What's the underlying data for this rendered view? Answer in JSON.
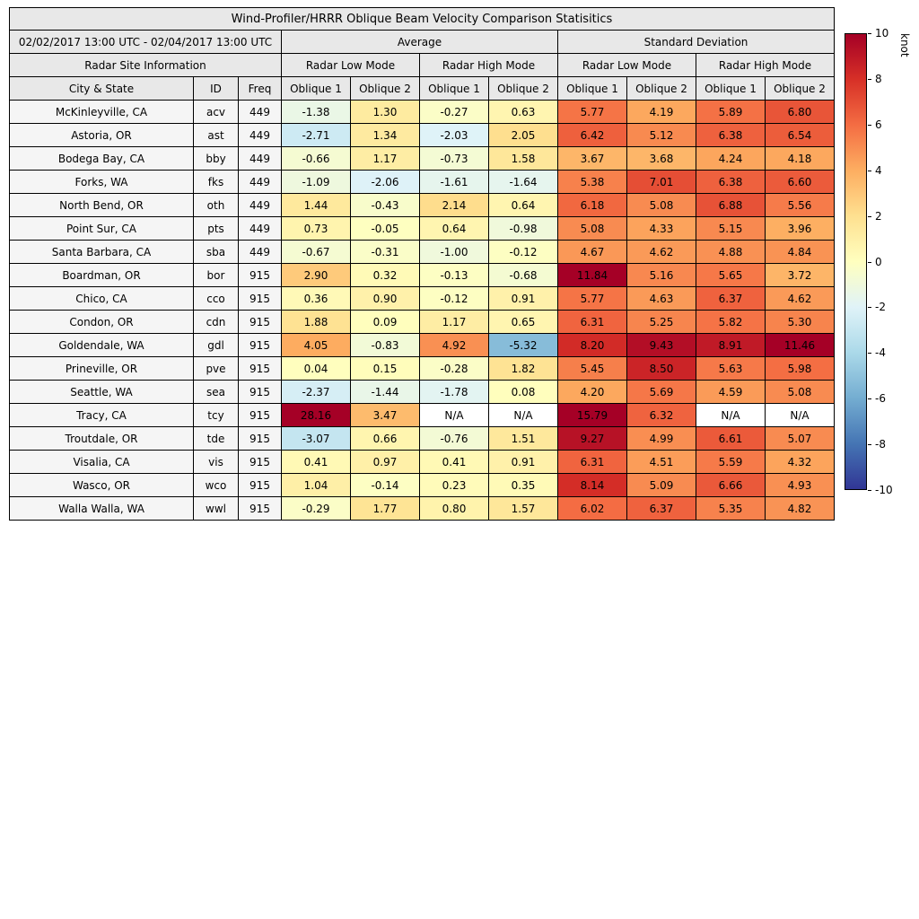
{
  "title": "Wind-Profiler/HRRR Oblique Beam Velocity Comparison Statisitics",
  "header": {
    "date_range": "02/02/2017 13:00 UTC - 02/04/2017 13:00 UTC",
    "group_average": "Average",
    "group_std": "Standard Deviation",
    "site_info": "Radar Site Information",
    "low_mode": "Radar Low Mode",
    "high_mode": "Radar High Mode",
    "col_city": "City & State",
    "col_id": "ID",
    "col_freq": "Freq",
    "oblique1": "Oblique 1",
    "oblique2": "Oblique 2"
  },
  "colorbar": {
    "label": "knot",
    "min": -10,
    "max": 10,
    "ticks": [
      10,
      8,
      6,
      4,
      2,
      0,
      -2,
      -4,
      -6,
      -8,
      -10
    ],
    "colormap": "RdYlBu_r",
    "gradient_stops": [
      "#313695",
      "#4575b4",
      "#74add1",
      "#abd9e9",
      "#e0f3f8",
      "#ffffbf",
      "#fee090",
      "#fdae61",
      "#f46d43",
      "#d73027",
      "#a50026"
    ],
    "na_color": "#ffffff"
  },
  "chart_data": {
    "type": "heatmap",
    "title": "Wind-Profiler/HRRR Oblique Beam Velocity Comparison Statisitics",
    "unit": "knot",
    "color_range": [
      -10,
      10
    ],
    "column_groups": [
      "Average / Radar Low Mode",
      "Average / Radar High Mode",
      "Standard Deviation / Radar Low Mode",
      "Standard Deviation / Radar High Mode"
    ],
    "value_columns": [
      "Avg Low Oblique 1",
      "Avg Low Oblique 2",
      "Avg High Oblique 1",
      "Avg High Oblique 2",
      "Std Low Oblique 1",
      "Std Low Oblique 2",
      "Std High Oblique 1",
      "Std High Oblique 2"
    ],
    "rows": [
      {
        "city": "McKinleyville, CA",
        "id": "acv",
        "freq": "449",
        "values": [
          -1.38,
          1.3,
          -0.27,
          0.63,
          5.77,
          4.19,
          5.89,
          6.8
        ]
      },
      {
        "city": "Astoria, OR",
        "id": "ast",
        "freq": "449",
        "values": [
          -2.71,
          1.34,
          -2.03,
          2.05,
          6.42,
          5.12,
          6.38,
          6.54
        ]
      },
      {
        "city": "Bodega Bay, CA",
        "id": "bby",
        "freq": "449",
        "values": [
          -0.66,
          1.17,
          -0.73,
          1.58,
          3.67,
          3.68,
          4.24,
          4.18
        ]
      },
      {
        "city": "Forks, WA",
        "id": "fks",
        "freq": "449",
        "values": [
          -1.09,
          -2.06,
          -1.61,
          -1.64,
          5.38,
          7.01,
          6.38,
          6.6
        ]
      },
      {
        "city": "North Bend, OR",
        "id": "oth",
        "freq": "449",
        "values": [
          1.44,
          -0.43,
          2.14,
          0.64,
          6.18,
          5.08,
          6.88,
          5.56
        ]
      },
      {
        "city": "Point Sur, CA",
        "id": "pts",
        "freq": "449",
        "values": [
          0.73,
          -0.05,
          0.64,
          -0.98,
          5.08,
          4.33,
          5.15,
          3.96
        ]
      },
      {
        "city": "Santa Barbara, CA",
        "id": "sba",
        "freq": "449",
        "values": [
          -0.67,
          -0.31,
          -1.0,
          -0.12,
          4.67,
          4.62,
          4.88,
          4.84
        ]
      },
      {
        "city": "Boardman, OR",
        "id": "bor",
        "freq": "915",
        "values": [
          2.9,
          0.32,
          -0.13,
          -0.68,
          11.84,
          5.16,
          5.65,
          3.72
        ]
      },
      {
        "city": "Chico, CA",
        "id": "cco",
        "freq": "915",
        "values": [
          0.36,
          0.9,
          -0.12,
          0.91,
          5.77,
          4.63,
          6.37,
          4.62
        ]
      },
      {
        "city": "Condon, OR",
        "id": "cdn",
        "freq": "915",
        "values": [
          1.88,
          0.09,
          1.17,
          0.65,
          6.31,
          5.25,
          5.82,
          5.3
        ]
      },
      {
        "city": "Goldendale, WA",
        "id": "gdl",
        "freq": "915",
        "values": [
          4.05,
          -0.83,
          4.92,
          -5.32,
          8.2,
          9.43,
          8.91,
          11.46
        ]
      },
      {
        "city": "Prineville, OR",
        "id": "pve",
        "freq": "915",
        "values": [
          0.04,
          0.15,
          -0.28,
          1.82,
          5.45,
          8.5,
          5.63,
          5.98
        ]
      },
      {
        "city": "Seattle, WA",
        "id": "sea",
        "freq": "915",
        "values": [
          -2.37,
          -1.44,
          -1.78,
          0.08,
          4.2,
          5.69,
          4.59,
          5.08
        ]
      },
      {
        "city": "Tracy, CA",
        "id": "tcy",
        "freq": "915",
        "values": [
          28.16,
          3.47,
          "N/A",
          "N/A",
          15.79,
          6.32,
          "N/A",
          "N/A"
        ]
      },
      {
        "city": "Troutdale, OR",
        "id": "tde",
        "freq": "915",
        "values": [
          -3.07,
          0.66,
          -0.76,
          1.51,
          9.27,
          4.99,
          6.61,
          5.07
        ]
      },
      {
        "city": "Visalia, CA",
        "id": "vis",
        "freq": "915",
        "values": [
          0.41,
          0.97,
          0.41,
          0.91,
          6.31,
          4.51,
          5.59,
          4.32
        ]
      },
      {
        "city": "Wasco, OR",
        "id": "wco",
        "freq": "915",
        "values": [
          1.04,
          -0.14,
          0.23,
          0.35,
          8.14,
          5.09,
          6.66,
          4.93
        ]
      },
      {
        "city": "Walla Walla, WA",
        "id": "wwl",
        "freq": "915",
        "values": [
          -0.29,
          1.77,
          0.8,
          1.57,
          6.02,
          6.37,
          5.35,
          4.82
        ]
      }
    ]
  }
}
